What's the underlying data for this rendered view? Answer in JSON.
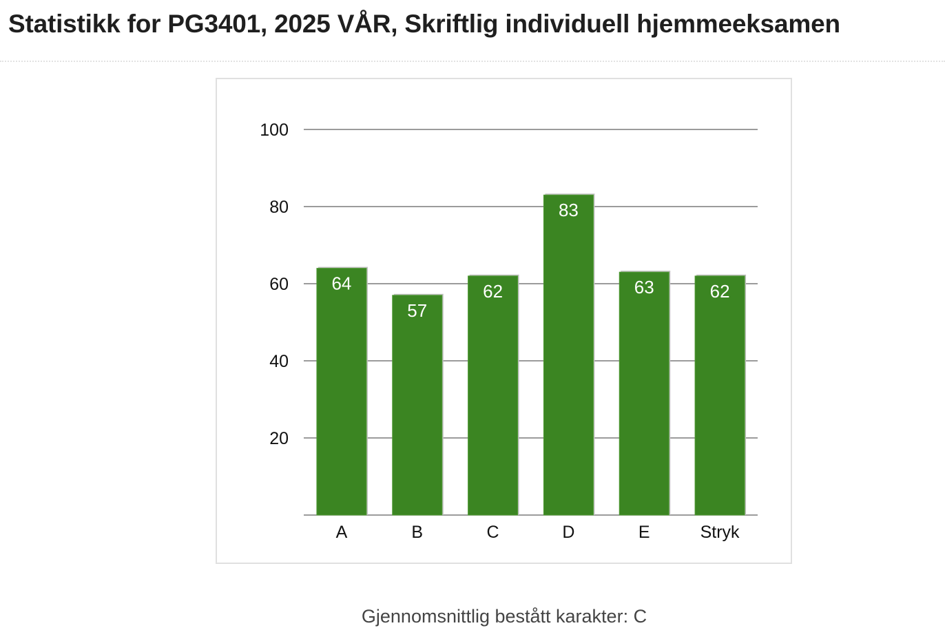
{
  "page": {
    "title": "Statistikk for PG3401, 2025 VÅR, Skriftlig individuell hjemmeeksamen",
    "footer_label": "Gjennomsnittlig bestått karakter:",
    "footer_value": "C"
  },
  "colors": {
    "bar": "#3b8522",
    "bar_highlight": "#4f9a33",
    "bar_shadow": "#bfbfbf",
    "grid": "#7a7a7a",
    "value_label": "#ffffff",
    "tick_label": "#111111"
  },
  "chart_data": {
    "type": "bar",
    "title": "",
    "xlabel": "",
    "ylabel": "",
    "categories": [
      "A",
      "B",
      "C",
      "D",
      "E",
      "Stryk"
    ],
    "values": [
      64,
      57,
      62,
      83,
      63,
      62
    ],
    "ylim": [
      0,
      100
    ],
    "yticks": [
      20,
      40,
      60,
      80,
      100
    ],
    "grid": true,
    "legend": "none",
    "data_labels": true
  }
}
